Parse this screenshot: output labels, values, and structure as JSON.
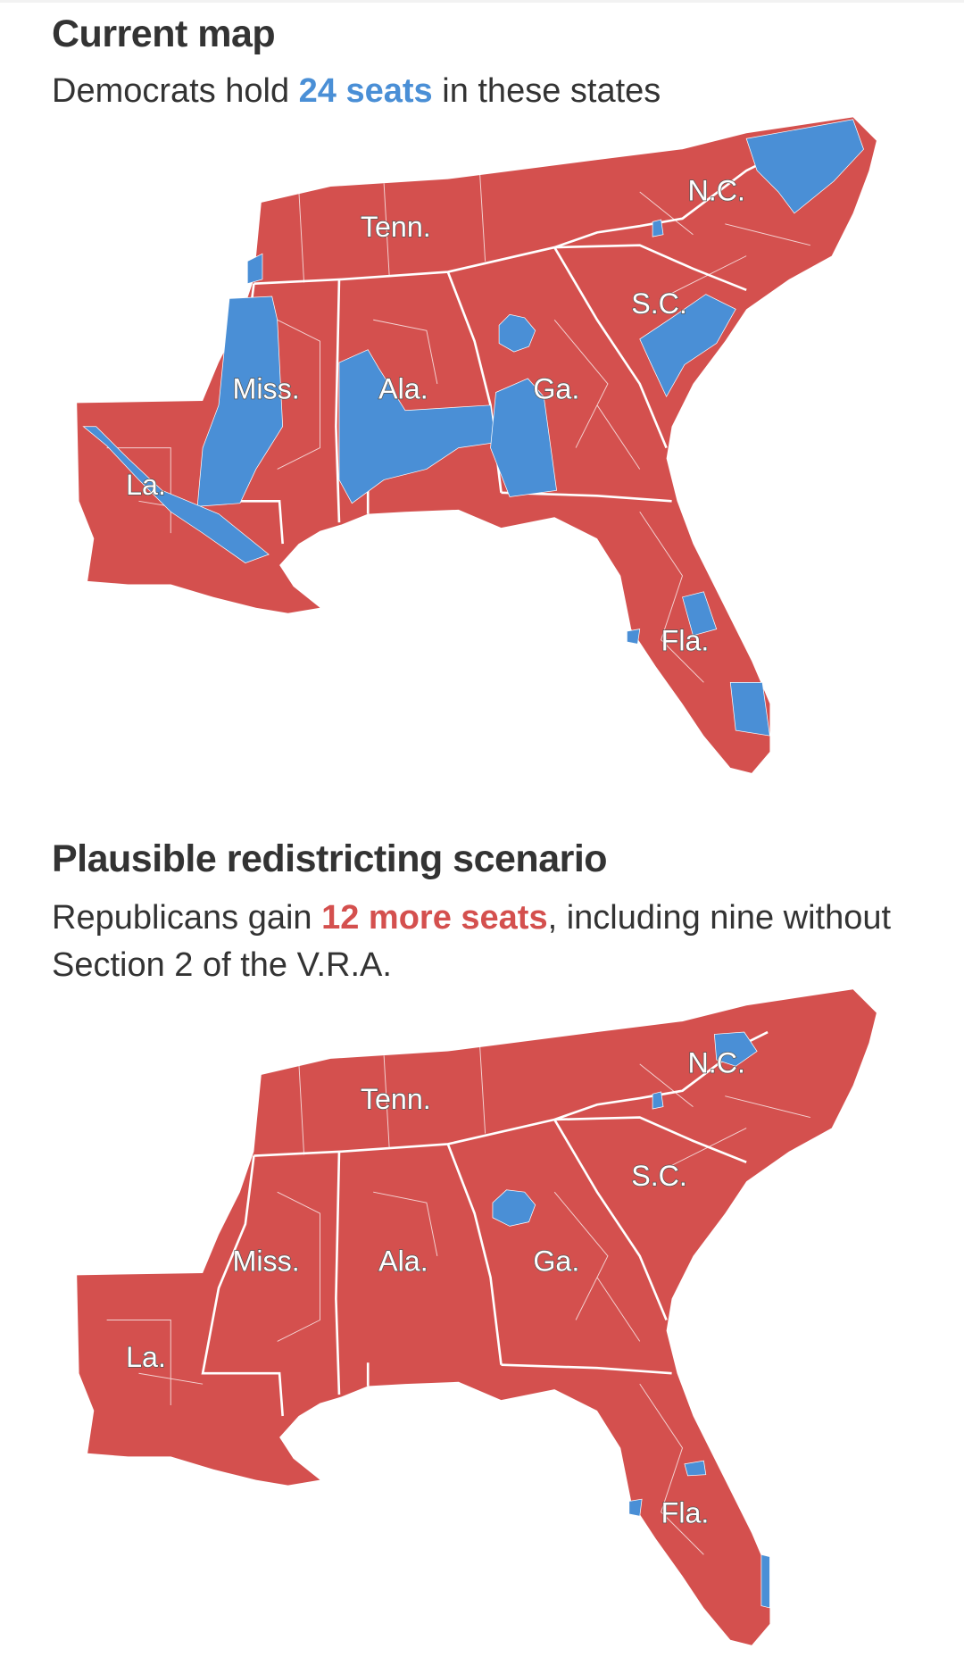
{
  "colors": {
    "republican": "#d4504e",
    "democrat": "#4a8fd6",
    "text": "#333333"
  },
  "current": {
    "title": "Current map",
    "subtitle_pre": "Democrats hold ",
    "subtitle_highlight": "24 seats",
    "subtitle_post": " in these states",
    "labels": {
      "tn": "Tenn.",
      "nc": "N.C.",
      "sc": "S.C.",
      "ms": "Miss.",
      "al": "Ala.",
      "ga": "Ga.",
      "la": "La.",
      "fl": "Fla."
    }
  },
  "scenario": {
    "title": "Plausible redistricting scenario",
    "subtitle_pre": "Republicans gain ",
    "subtitle_highlight": "12 more seats",
    "subtitle_post": ", including nine without Section 2 of the V.R.A.",
    "labels": {
      "tn": "Tenn.",
      "nc": "N.C.",
      "sc": "S.C.",
      "ms": "Miss.",
      "al": "Ala.",
      "ga": "Ga.",
      "la": "La.",
      "fl": "Fla."
    }
  }
}
